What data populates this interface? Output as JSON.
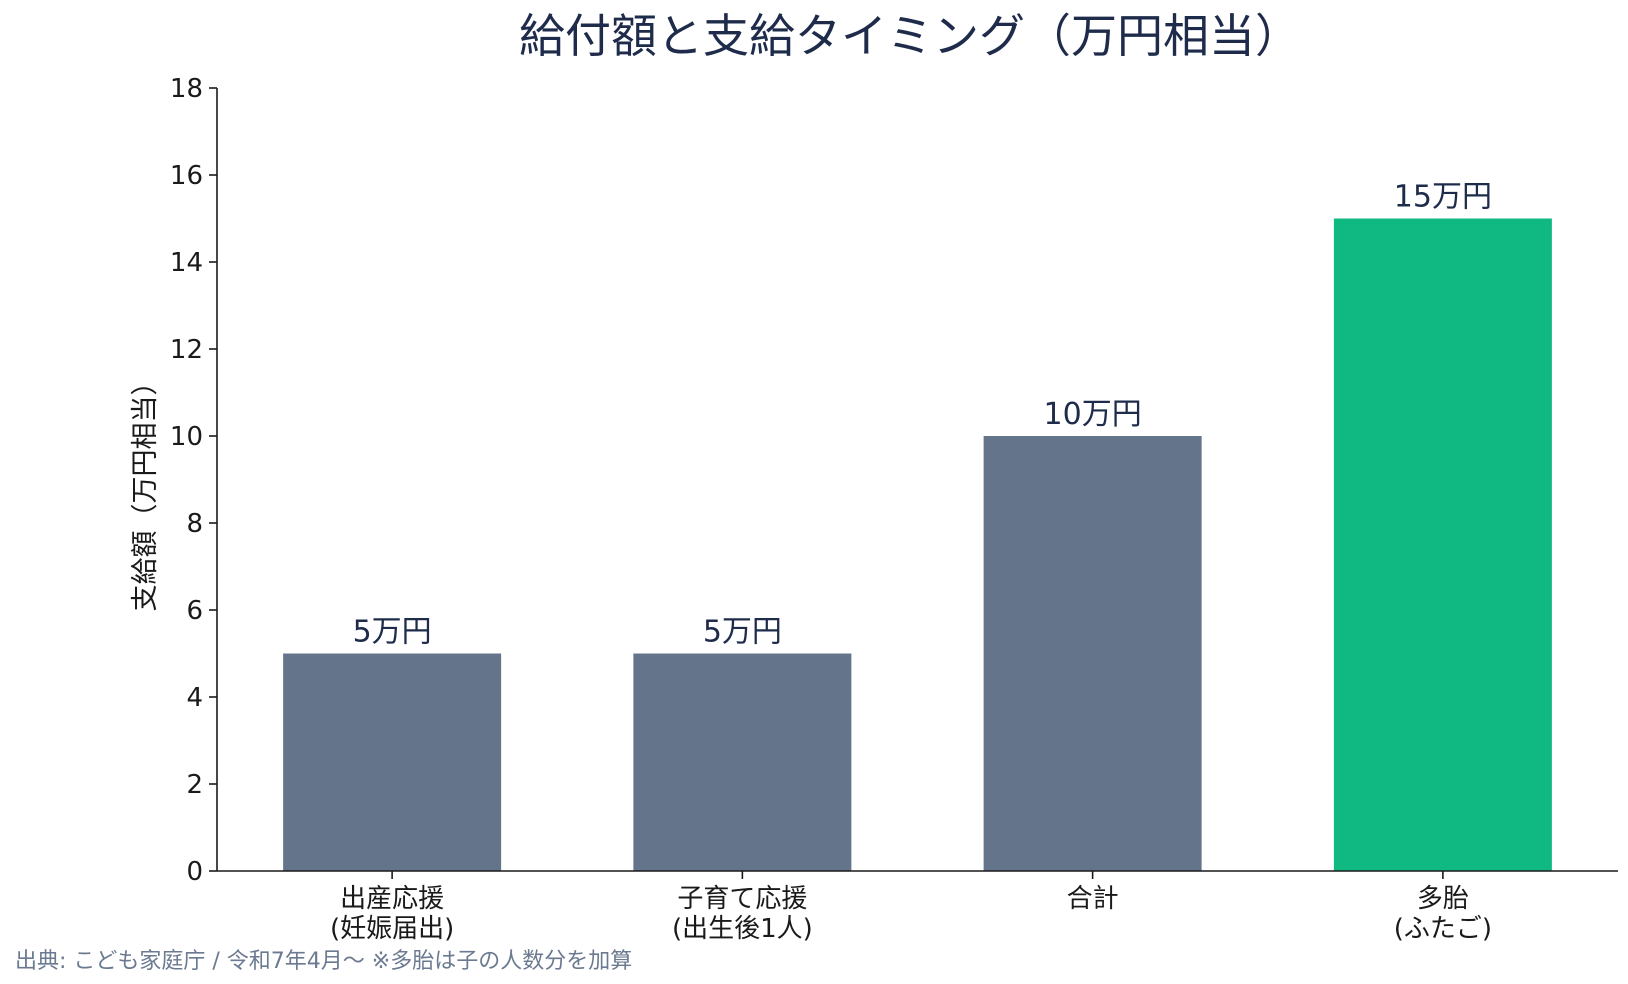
{
  "chart_data": {
    "type": "bar",
    "title": "給付額と支給タイミング（万円相当）",
    "ylabel": "支給額（万円相当）",
    "xlabel": "",
    "ylim": [
      0,
      18
    ],
    "yticks": [
      0,
      2,
      4,
      6,
      8,
      10,
      12,
      14,
      16,
      18
    ],
    "grid": false,
    "legend": "none",
    "categories": [
      [
        "出産応援",
        "(妊娠届出)"
      ],
      [
        "子育て応援",
        "(出生後1人)"
      ],
      [
        "合計"
      ],
      [
        "多胎",
        "(ふたご)"
      ]
    ],
    "values": [
      5,
      5,
      10,
      15
    ],
    "data_labels": [
      "5万円",
      "5万円",
      "10万円",
      "15万円"
    ],
    "bar_colors": [
      "#64748b",
      "#64748b",
      "#64748b",
      "#10b981"
    ]
  },
  "source_note": "出典: こども家庭庁 / 令和7年4月〜 ※多胎は子の人数分を加算",
  "colors": {
    "title": "#1e2b4a",
    "bar_default": "#64748b",
    "bar_highlight": "#10b981",
    "source": "#6b7a90"
  }
}
